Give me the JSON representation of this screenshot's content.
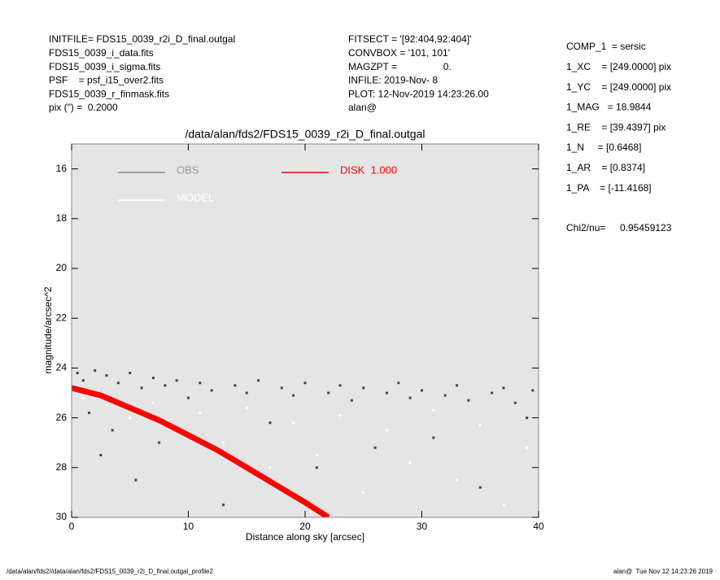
{
  "header": {
    "left": [
      "INITFILE= FDS15_0039_r2i_D_final.outgal",
      "FDS15_0039_i_data.fits",
      "FDS15_0039_i_sigma.fits",
      "PSF    = psf_i15_over2.fits",
      "FDS15_0039_r_finmask.fits",
      "pix (\") =  0.2000"
    ],
    "middle": [
      "FITSECT = '[92:404,92:404]'",
      "CONVBOX = '101, 101'",
      "MAGZPT =                 0.",
      "INFILE: 2019-Nov- 8",
      "PLOT: 12-Nov-2019 14:23:26.00",
      "alan@"
    ],
    "right": [
      "COMP_1  = sersic",
      "1_XC    = [249.0000] pix",
      "1_YC    = [249.0000] pix",
      "1_MAG   = 18.9844",
      "1_RE    = [39.4397] pix",
      "1_N     = [0.6468]",
      "1_AR    = [0.8374]",
      "1_PA    = [-11.4168]"
    ],
    "chi2_label": "Chi2/nu=",
    "chi2_value": "0.95459123"
  },
  "footer": {
    "left": "/data/alan/fds2//data/alan/fds2/FDS15_0039_r2i_D_final.outgal_profile2",
    "right": "alan@  Tue Nov 12 14:23:26 2019"
  },
  "chart_data": {
    "type": "scatter",
    "title": "/data/alan/fds2/FDS15_0039_r2i_D_final.outgal",
    "x_label": "Distance along sky [arcsec]",
    "y_label": "magnitude/arcsec^2",
    "xlim": [
      0,
      40
    ],
    "ylim": [
      30,
      15
    ],
    "xticks": [
      0,
      10,
      20,
      30,
      40
    ],
    "yticks": [
      16,
      18,
      20,
      22,
      24,
      26,
      28,
      30
    ],
    "series": [
      {
        "name": "OBS",
        "color": "#444444",
        "x": [
          0.5,
          1,
          1.5,
          2,
          2.5,
          3,
          3.5,
          4,
          5,
          5.5,
          6,
          7,
          7.5,
          8,
          9,
          10,
          11,
          12,
          13,
          14,
          15,
          16,
          17,
          18,
          19,
          20,
          21,
          22,
          23,
          24,
          25,
          26,
          27,
          28,
          29,
          30,
          31,
          32,
          33,
          34,
          35,
          36,
          37,
          38,
          39,
          39.5
        ],
        "values": [
          24.2,
          24.5,
          25.8,
          24.1,
          27.5,
          24.3,
          26.5,
          24.6,
          24.2,
          28.5,
          24.8,
          24.4,
          27,
          24.7,
          24.5,
          25.2,
          24.6,
          24.9,
          29.5,
          24.7,
          25,
          24.5,
          26.2,
          24.8,
          25.1,
          24.6,
          28,
          25,
          24.7,
          25.3,
          24.8,
          27.2,
          25,
          24.6,
          25.2,
          24.9,
          26.8,
          25.1,
          24.7,
          25.3,
          28.8,
          25,
          24.8,
          25.4,
          26,
          24.9
        ]
      },
      {
        "name": "MODEL",
        "color": "#ffffff",
        "x": [
          1,
          3,
          5,
          7,
          9,
          11,
          13,
          15,
          17,
          19,
          21,
          23,
          25,
          27,
          29,
          31,
          33,
          35,
          37,
          39
        ],
        "values": [
          25.2,
          25.5,
          26,
          25.4,
          26.5,
          25.8,
          27,
          25.6,
          28,
          26.2,
          27.5,
          25.9,
          29,
          26.5,
          27.8,
          25.7,
          28.5,
          26.3,
          29.5,
          27.2
        ]
      },
      {
        "name": "DISK  1.000",
        "color": "#ff0000",
        "type": "line",
        "x": [
          0,
          2.5,
          5,
          7.5,
          10,
          12.5,
          15,
          17.5,
          20,
          22
        ],
        "values": [
          24.8,
          25.1,
          25.6,
          26.1,
          26.7,
          27.3,
          28,
          28.7,
          29.4,
          30
        ]
      }
    ]
  }
}
